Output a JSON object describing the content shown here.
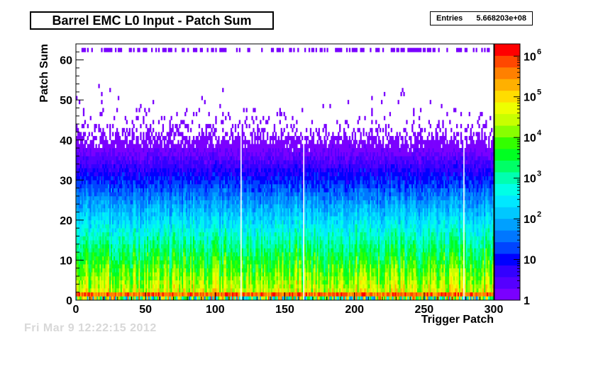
{
  "chart_data": {
    "type": "heatmap",
    "title": "Barrel EMC L0 Input - Patch Sum",
    "xlabel": "Trigger Patch",
    "ylabel": "Patch Sum",
    "xlim": [
      0,
      300
    ],
    "ylim": [
      0,
      64
    ],
    "x_ticks": [
      "0",
      "50",
      "100",
      "150",
      "200",
      "250",
      "300"
    ],
    "y_ticks": [
      "0",
      "10",
      "20",
      "30",
      "40",
      "50",
      "60"
    ],
    "z_scale": "log",
    "zlim": [
      1,
      2000000
    ],
    "colorbar_ticks": [
      {
        "value": 1,
        "label": "1"
      },
      {
        "value": 10,
        "label": "10"
      },
      {
        "value": 100,
        "label": "10",
        "exp": "2"
      },
      {
        "value": 1000,
        "label": "10",
        "exp": "3"
      },
      {
        "value": 10000,
        "label": "10",
        "exp": "4"
      },
      {
        "value": 100000,
        "label": "10",
        "exp": "5"
      },
      {
        "value": 1000000,
        "label": "10",
        "exp": "6"
      }
    ],
    "stats": {
      "label": "Entries",
      "value": "5.668203e+08"
    },
    "palette": [
      "#7a00ff",
      "#5500ff",
      "#3300ff",
      "#0000ff",
      "#0044ff",
      "#0077ff",
      "#00a0ff",
      "#00c8ff",
      "#00e8ff",
      "#00ffe6",
      "#00ffb0",
      "#00ff66",
      "#00ff22",
      "#33ff00",
      "#88ff00",
      "#c8ff00",
      "#eeff00",
      "#ffdd00",
      "#ffb000",
      "#ff8000",
      "#ff4800",
      "#ff0000"
    ],
    "empty_columns": [
      118,
      163,
      278
    ],
    "peak_bin": 1
  },
  "footer_text": "Fri Mar  9 12:22:15 2012"
}
